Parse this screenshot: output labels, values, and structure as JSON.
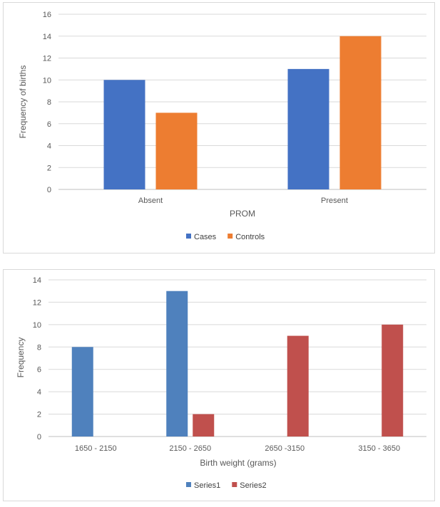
{
  "chart_data": [
    {
      "type": "bar",
      "xlabel": "PROM",
      "ylabel": "Frequency of births",
      "categories": [
        "Absent",
        "Present"
      ],
      "series": [
        {
          "name": "Cases",
          "values": [
            10,
            11
          ],
          "color": "#4472C4"
        },
        {
          "name": "Controls",
          "values": [
            7,
            14
          ],
          "color": "#ED7D31"
        }
      ],
      "ylim": [
        0,
        16
      ],
      "yticks": [
        0,
        2,
        4,
        6,
        8,
        10,
        12,
        14,
        16
      ],
      "grid": true,
      "legend": "bottom"
    },
    {
      "type": "bar",
      "xlabel": "Birth weight (grams)",
      "ylabel": "Frequency",
      "categories": [
        "1650 - 2150",
        "2150 - 2650",
        "2650 -3150",
        "3150 - 3650"
      ],
      "series": [
        {
          "name": "Series1",
          "values": [
            8,
            13,
            null,
            null
          ],
          "color": "#4F81BD"
        },
        {
          "name": "Series2",
          "values": [
            null,
            2,
            9,
            10
          ],
          "color": "#C0504D"
        }
      ],
      "ylim": [
        0,
        14
      ],
      "yticks": [
        0,
        2,
        4,
        6,
        8,
        10,
        12,
        14
      ],
      "grid": true,
      "legend": "bottom"
    }
  ]
}
